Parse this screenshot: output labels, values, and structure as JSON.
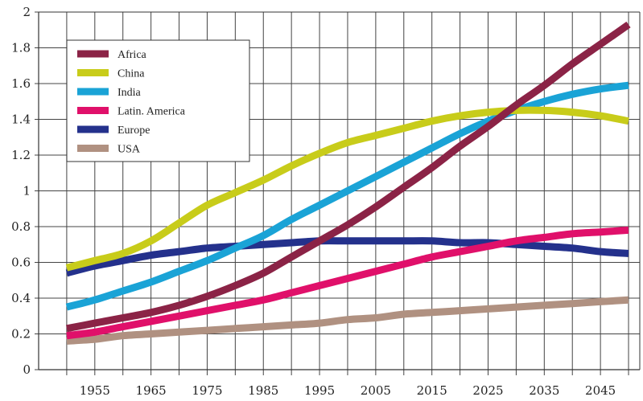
{
  "chart_data": {
    "type": "line",
    "title": "",
    "xlabel": "",
    "ylabel": "",
    "xlim": [
      1945,
      2052
    ],
    "ylim": [
      0,
      2
    ],
    "x_ticks": [
      1955,
      1965,
      1975,
      1985,
      1995,
      2005,
      2015,
      2025,
      2035,
      2045
    ],
    "y_ticks": [
      0,
      0.2,
      0.4,
      0.6,
      0.8,
      1,
      1.2,
      1.4,
      1.6,
      1.8,
      2
    ],
    "grid": true,
    "legend_position": "top-left",
    "x": [
      1950,
      1955,
      1960,
      1965,
      1970,
      1975,
      1980,
      1985,
      1990,
      1995,
      2000,
      2005,
      2010,
      2015,
      2020,
      2025,
      2030,
      2035,
      2040,
      2045,
      2050
    ],
    "series": [
      {
        "name": "Africa",
        "color": "#8b2346",
        "values": [
          0.23,
          0.26,
          0.29,
          0.32,
          0.36,
          0.41,
          0.47,
          0.54,
          0.63,
          0.72,
          0.81,
          0.91,
          1.02,
          1.13,
          1.25,
          1.36,
          1.48,
          1.59,
          1.71,
          1.82,
          1.93
        ]
      },
      {
        "name": "China",
        "color": "#c8cc1a",
        "values": [
          0.57,
          0.61,
          0.65,
          0.72,
          0.82,
          0.92,
          0.99,
          1.06,
          1.14,
          1.21,
          1.27,
          1.31,
          1.35,
          1.39,
          1.42,
          1.44,
          1.45,
          1.45,
          1.44,
          1.42,
          1.39
        ]
      },
      {
        "name": "India",
        "color": "#1aa3d6",
        "values": [
          0.35,
          0.39,
          0.44,
          0.49,
          0.55,
          0.61,
          0.68,
          0.75,
          0.84,
          0.92,
          1.0,
          1.08,
          1.16,
          1.24,
          1.32,
          1.39,
          1.45,
          1.5,
          1.54,
          1.57,
          1.59
        ]
      },
      {
        "name": "Latin. America",
        "color": "#e0106a",
        "values": [
          0.19,
          0.21,
          0.24,
          0.27,
          0.3,
          0.33,
          0.36,
          0.39,
          0.43,
          0.47,
          0.51,
          0.55,
          0.59,
          0.63,
          0.66,
          0.69,
          0.72,
          0.74,
          0.76,
          0.77,
          0.78
        ]
      },
      {
        "name": "Europe",
        "color": "#24318c",
        "values": [
          0.54,
          0.58,
          0.61,
          0.64,
          0.66,
          0.68,
          0.69,
          0.7,
          0.71,
          0.72,
          0.72,
          0.72,
          0.72,
          0.72,
          0.71,
          0.71,
          0.7,
          0.69,
          0.68,
          0.66,
          0.65
        ]
      },
      {
        "name": "USA",
        "color": "#b09181",
        "values": [
          0.16,
          0.17,
          0.19,
          0.2,
          0.21,
          0.22,
          0.23,
          0.24,
          0.25,
          0.26,
          0.28,
          0.29,
          0.31,
          0.32,
          0.33,
          0.34,
          0.35,
          0.36,
          0.37,
          0.38,
          0.39
        ]
      }
    ]
  }
}
